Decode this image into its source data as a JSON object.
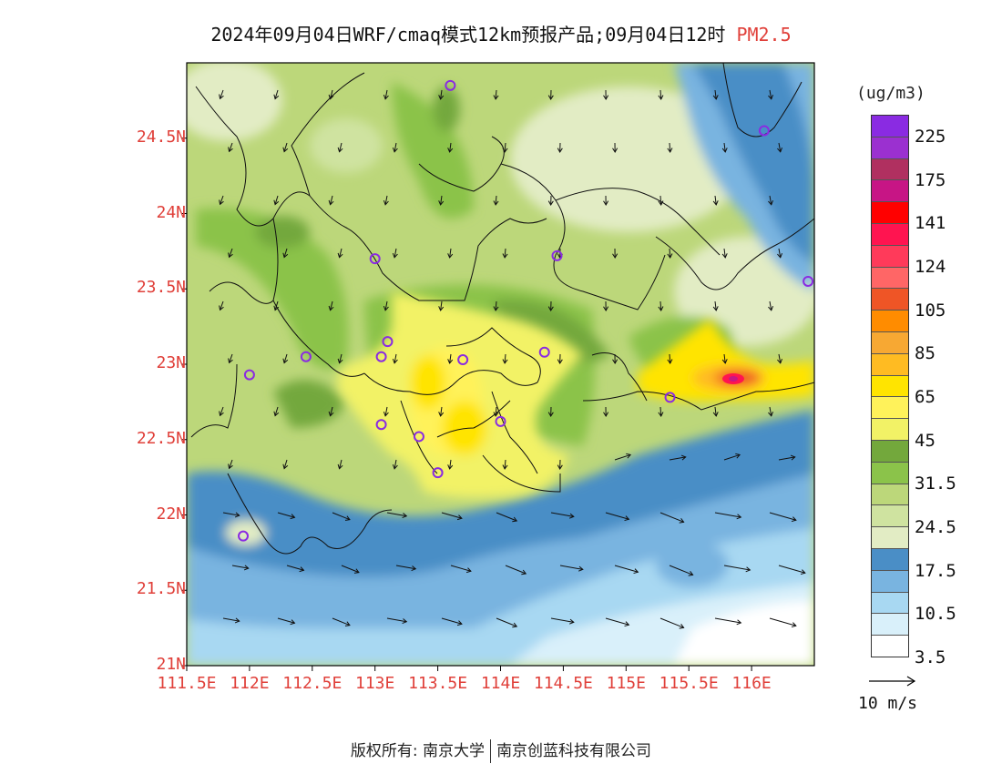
{
  "title": {
    "main": "2024年09月04日WRF/cmaq模式12km预报产品;09月04日12时",
    "pollutant": "PM2.5"
  },
  "map": {
    "lat_ticks": [
      "24.5N",
      "24N",
      "23.5N",
      "23N",
      "22.5N",
      "22N",
      "21.5N",
      "21N"
    ],
    "lon_ticks": [
      "111.5E",
      "112E",
      "112.5E",
      "113E",
      "113.5E",
      "114E",
      "114.5E",
      "115E",
      "115.5E",
      "116E"
    ],
    "extent": {
      "lon_min": 111.5,
      "lon_max": 116.5,
      "lat_min": 21.0,
      "lat_max": 25.0
    },
    "stations": [
      [
        113.6,
        24.85
      ],
      [
        116.1,
        24.55
      ],
      [
        113.0,
        23.7
      ],
      [
        114.45,
        23.72
      ],
      [
        116.45,
        23.55
      ],
      [
        112.45,
        23.05
      ],
      [
        112.0,
        22.93
      ],
      [
        113.1,
        23.15
      ],
      [
        113.05,
        23.05
      ],
      [
        113.7,
        23.03
      ],
      [
        114.35,
        23.08
      ],
      [
        113.05,
        22.6
      ],
      [
        113.35,
        22.52
      ],
      [
        114.0,
        22.62
      ],
      [
        113.5,
        22.28
      ],
      [
        111.95,
        21.86
      ],
      [
        115.35,
        22.78
      ]
    ],
    "icons": [
      "station-circle-icon",
      "wind-arrow-icon"
    ]
  },
  "colorbar": {
    "unit": "(ug/m3)",
    "colors": [
      "#8a2be2",
      "#9b30d0",
      "#b03060",
      "#c71585",
      "#ff0000",
      "#ff1450",
      "#ff3a5a",
      "#ff6666",
      "#ef5526",
      "#ff8c00",
      "#f7a833",
      "#ffbb22",
      "#ffe400",
      "#fff25a",
      "#f2f266",
      "#73a83c",
      "#8bc34a",
      "#bcd77a",
      "#cfe3a0",
      "#e2ecc4",
      "#4a8ec6",
      "#79b4e0",
      "#a8d8f2",
      "#d9f0fa",
      "#ffffff"
    ],
    "labels": [
      "225",
      "175",
      "141",
      "124",
      "105",
      "85",
      "65",
      "45",
      "31.5",
      "24.5",
      "17.5",
      "10.5",
      "3.5"
    ]
  },
  "wind_reference": "10 m/s",
  "footer": {
    "copyright": "版权所有: 南京大学",
    "company": "南京创蓝科技有限公司"
  }
}
